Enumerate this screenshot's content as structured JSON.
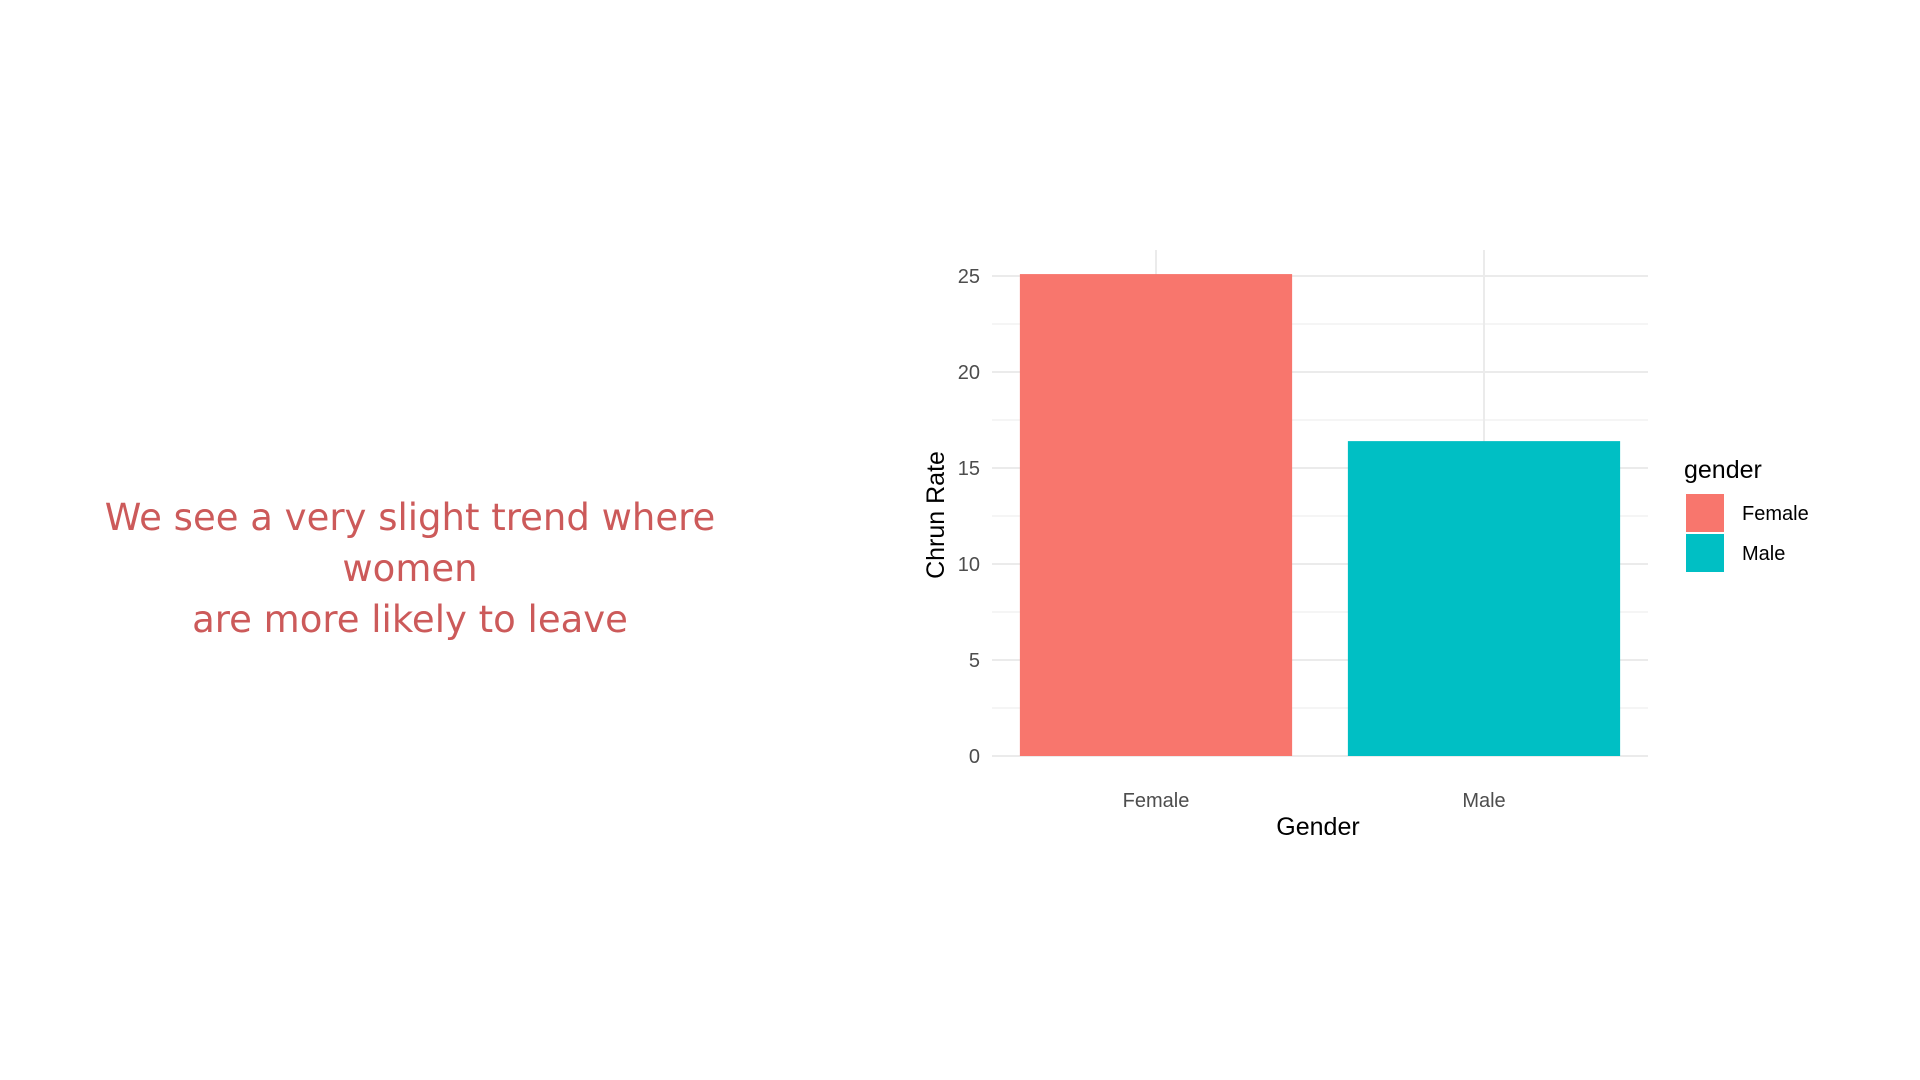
{
  "caption": {
    "line1": "We see a very slight trend where women",
    "line2": "are more likely to leave"
  },
  "chart_data": {
    "type": "bar",
    "categories": [
      "Female",
      "Male"
    ],
    "values": [
      25.1,
      16.4
    ],
    "colors": [
      "#f8766d",
      "#00bfc4"
    ],
    "xlabel": "Gender",
    "ylabel": "Chrun Rate",
    "ylim": [
      0,
      26.2
    ],
    "yticks": [
      0,
      5,
      10,
      15,
      20,
      25
    ],
    "grid": true,
    "legend": {
      "title": "gender",
      "position": "right",
      "items": [
        {
          "label": "Female",
          "color": "#f8766d"
        },
        {
          "label": "Male",
          "color": "#00bfc4"
        }
      ]
    }
  }
}
